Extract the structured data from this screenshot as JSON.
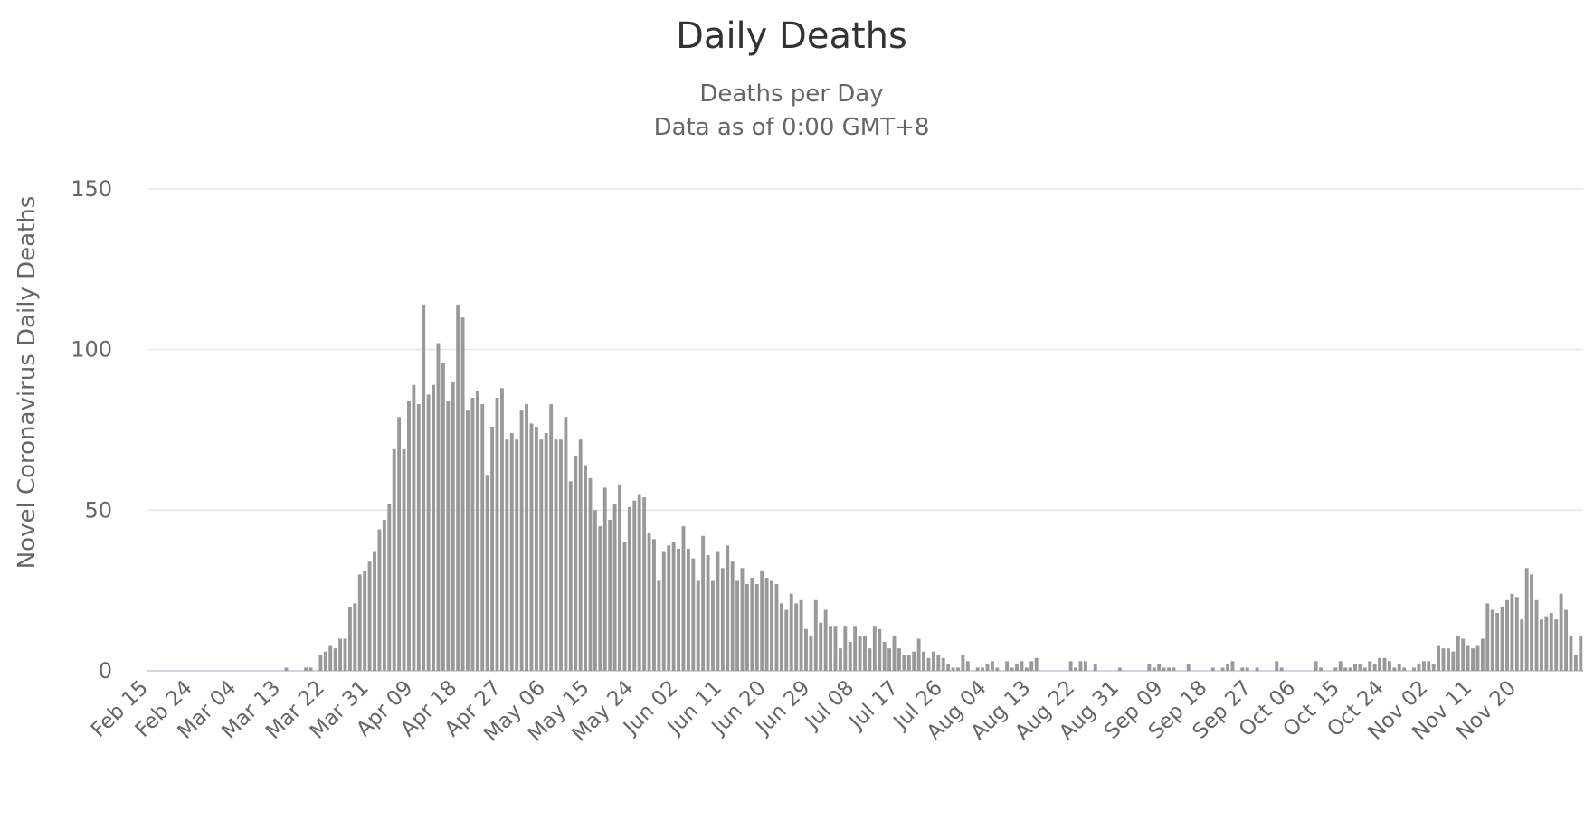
{
  "chart_data": {
    "type": "bar",
    "title": "Daily Deaths",
    "subtitle": [
      "Deaths per Day",
      "Data as of 0:00 GMT+8"
    ],
    "ylabel": "Novel Coronavirus Daily Deaths",
    "xlabel": "",
    "ylim": [
      0,
      150
    ],
    "yticks": [
      0,
      50,
      100,
      150
    ],
    "grid": true,
    "legend": "none",
    "colors": {
      "bar": "#999999",
      "grid": "#e6e6e6",
      "baseline": "#ccd6eb"
    },
    "x_start": "2020-02-15",
    "x_end": "2020-11-20",
    "x_tick_labels": [
      "Feb 15",
      "Feb 24",
      "Mar 04",
      "Mar 13",
      "Mar 22",
      "Mar 31",
      "Apr 09",
      "Apr 18",
      "Apr 27",
      "May 06",
      "May 15",
      "May 24",
      "Jun 02",
      "Jun 11",
      "Jun 20",
      "Jun 29",
      "Jul 08",
      "Jul 17",
      "Jul 26",
      "Aug 04",
      "Aug 13",
      "Aug 22",
      "Aug 31",
      "Sep 09",
      "Sep 18",
      "Sep 27",
      "Oct 06",
      "Oct 15",
      "Oct 24",
      "Nov 02",
      "Nov 11",
      "Nov 20"
    ],
    "series": [
      {
        "values": [
          0,
          0,
          0,
          0,
          0,
          0,
          0,
          0,
          0,
          0,
          0,
          0,
          0,
          0,
          0,
          0,
          0,
          0,
          0,
          0,
          0,
          0,
          0,
          0,
          0,
          0,
          0,
          0,
          1,
          0,
          0,
          0,
          1,
          1,
          0,
          5,
          6,
          8,
          7,
          10,
          10,
          20,
          21,
          30,
          31,
          34,
          37,
          44,
          47,
          52,
          69,
          79,
          69,
          84,
          89,
          83,
          114,
          86,
          89,
          102,
          96,
          84,
          90,
          114,
          110,
          81,
          85,
          87,
          83,
          61,
          76,
          85,
          88,
          72,
          74,
          72,
          81,
          83,
          77,
          76,
          72,
          74,
          83,
          72,
          72,
          79,
          59,
          67,
          72,
          64,
          60,
          50,
          45,
          57,
          47,
          52,
          58,
          40,
          51,
          53,
          55,
          54,
          43,
          41,
          28,
          37,
          39,
          40,
          38,
          45,
          38,
          35,
          28,
          42,
          36,
          28,
          37,
          32,
          39,
          34,
          28,
          32,
          27,
          29,
          27,
          31,
          29,
          28,
          27,
          21,
          19,
          24,
          21,
          22,
          13,
          11,
          22,
          15,
          19,
          14,
          14,
          7,
          14,
          9,
          14,
          11,
          11,
          7,
          14,
          13,
          9,
          7,
          11,
          7,
          5,
          5,
          6,
          10,
          6,
          4,
          6,
          5,
          4,
          2,
          1,
          1,
          5,
          3,
          0,
          1,
          1,
          2,
          3,
          1,
          0,
          3,
          1,
          2,
          3,
          1,
          3,
          4,
          0,
          0,
          0,
          0,
          0,
          0,
          3,
          1,
          3,
          3,
          0,
          2,
          0,
          0,
          0,
          0,
          1,
          0,
          0,
          0,
          0,
          0,
          2,
          1,
          2,
          1,
          1,
          1,
          0,
          0,
          2,
          0,
          0,
          0,
          0,
          1,
          0,
          1,
          2,
          3,
          0,
          1,
          1,
          0,
          1,
          0,
          0,
          0,
          3,
          1,
          0,
          0,
          0,
          0,
          0,
          0,
          3,
          1,
          0,
          0,
          1,
          3,
          1,
          1,
          2,
          2,
          1,
          3,
          2,
          4,
          4,
          3,
          1,
          2,
          1,
          0,
          1,
          2,
          3,
          3,
          2,
          8,
          7,
          7,
          6,
          11,
          10,
          8,
          7,
          8,
          10,
          21,
          19,
          18,
          20,
          22,
          24,
          23,
          16,
          32,
          30,
          22,
          16,
          17,
          18,
          16,
          24,
          19,
          11,
          5,
          11
        ]
      }
    ]
  }
}
